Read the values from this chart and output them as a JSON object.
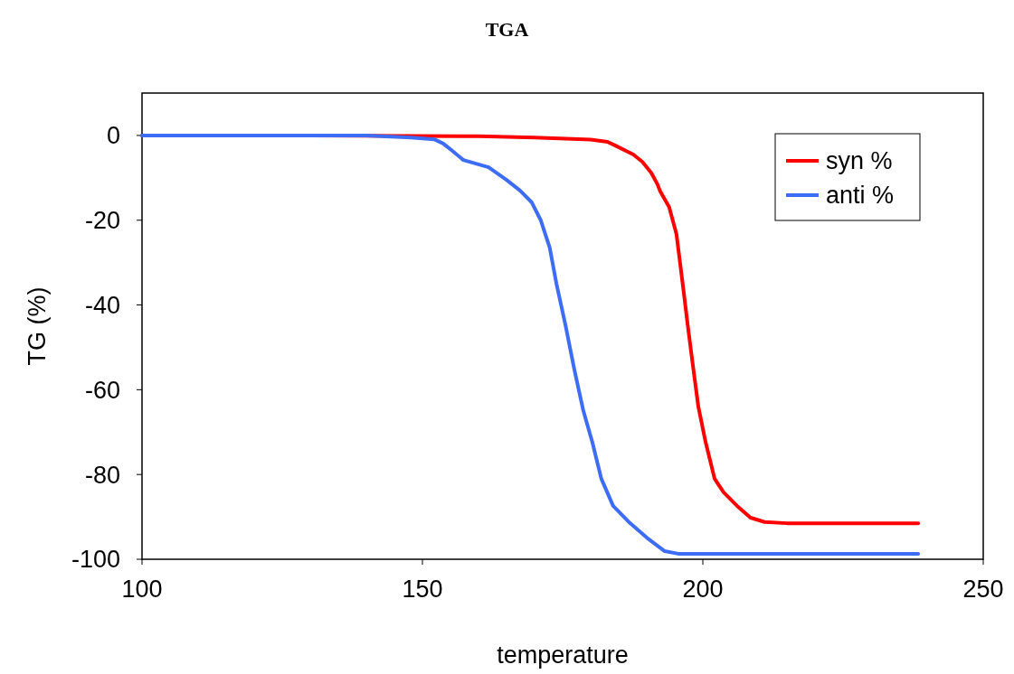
{
  "chart_data": {
    "type": "line",
    "title": "TGA",
    "xlabel": "temperature",
    "ylabel": "TG (%)",
    "xlim": [
      100,
      250
    ],
    "xticks": [
      100,
      150,
      200,
      250
    ],
    "ylim": [
      -100,
      10
    ],
    "yticks": [
      -100,
      -80,
      -60,
      -40,
      -20,
      0
    ],
    "grid": false,
    "legend": "top right",
    "marker": "none",
    "line_style": "solid",
    "series": [
      {
        "name": "syn %",
        "color": "#ff0000",
        "x": [
          100,
          130,
          160,
          170,
          180,
          183,
          184.4,
          187.6,
          189.2,
          190.8,
          191.9,
          192.4,
          194,
          195.3,
          196.5,
          197.3,
          198.1,
          199.2,
          200.5,
          202.1,
          203.7,
          206.1,
          208.5,
          211,
          215,
          238.4
        ],
        "values": [
          0,
          0,
          -0.2,
          -0.5,
          -1,
          -1.5,
          -2.4,
          -4.5,
          -6.2,
          -8.8,
          -11.5,
          -13.2,
          -16.9,
          -23.3,
          -36,
          -44.7,
          -53,
          -64,
          -72.4,
          -81,
          -84.2,
          -87.4,
          -90.2,
          -91.2,
          -91.5,
          -91.5
        ]
      },
      {
        "name": "anti %",
        "color": "#3d6cf5",
        "x": [
          100,
          140,
          148,
          152.1,
          153.7,
          155.3,
          157.3,
          159.4,
          161.8,
          165,
          167.4,
          169.5,
          171.1,
          172.7,
          173.9,
          175.5,
          177.1,
          178.7,
          180.3,
          181.9,
          184,
          186.8,
          190,
          193.2,
          195.6,
          238.4
        ],
        "values": [
          0,
          0,
          -0.5,
          -0.9,
          -1.9,
          -3.6,
          -5.8,
          -6.6,
          -7.5,
          -10.5,
          -13,
          -15.8,
          -20,
          -26.5,
          -35,
          -44.7,
          -55.3,
          -65,
          -72.4,
          -81,
          -87.4,
          -91.2,
          -94.9,
          -98.1,
          -98.7,
          -98.7
        ]
      }
    ]
  }
}
